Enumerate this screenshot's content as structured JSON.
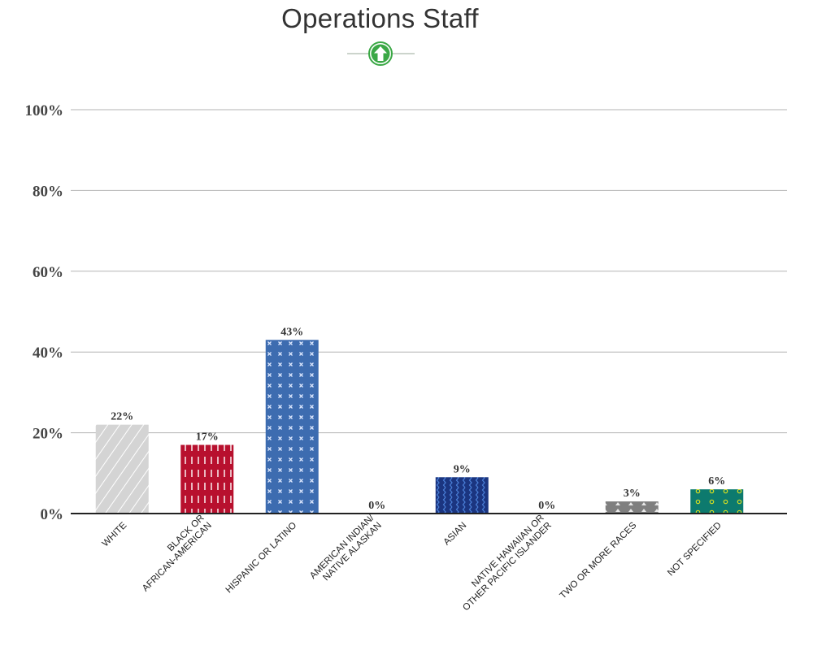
{
  "chart_data": {
    "type": "bar",
    "title": "Operations Staff",
    "categories": [
      [
        "WHITE"
      ],
      [
        "BLACK OR",
        "AFRICAN-AMERICAN"
      ],
      [
        "HISPANIC OR LATINO"
      ],
      [
        "AMERICAN INDIAN/",
        "NATIVE ALASKAN"
      ],
      [
        "ASIAN"
      ],
      [
        "NATIVE HAWAIIAN OR",
        "OTHER PACIFIC ISLANDER"
      ],
      [
        "TWO OR MORE RACES"
      ],
      [
        "NOT SPECIFIED"
      ]
    ],
    "values": [
      22,
      17,
      43,
      0,
      9,
      0,
      3,
      6
    ],
    "data_labels": [
      "22%",
      "17%",
      "43%",
      "0%",
      "9%",
      "0%",
      "3%",
      "6%"
    ],
    "y_ticks": [
      0,
      20,
      40,
      60,
      80,
      100
    ],
    "y_tick_labels": [
      "0%",
      "20%",
      "40%",
      "60%",
      "80%",
      "100%"
    ],
    "ylim": [
      0,
      100
    ],
    "xlabel": "",
    "ylabel": "",
    "grid": true,
    "bar_colors": [
      "#d4d4d4",
      "#b8102e",
      "#3d6cb0",
      "#ffffff",
      "#1b3580",
      "#ffffff",
      "#7f7f7f",
      "#0d7a6e"
    ],
    "pattern_colors": [
      "#ffffff",
      "#ffffff",
      "#dde8ff",
      "#ffffff",
      "#4a7fd8",
      "#ffffff",
      "#e8e8e8",
      "#d8e020"
    ],
    "trend_icon": "up-arrow-icon",
    "trend_color": "#3aa845"
  }
}
